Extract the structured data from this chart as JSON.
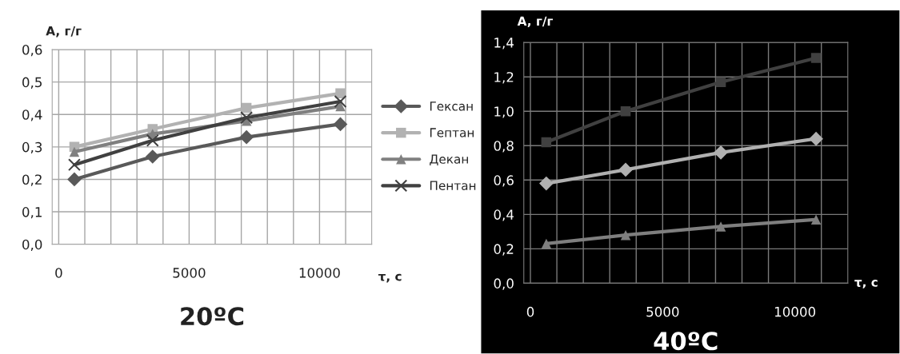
{
  "chart_data": [
    {
      "type": "line",
      "title": "20ºC",
      "xlabel": "τ, с",
      "ylabel": "A, г/г",
      "x": [
        600,
        3600,
        7200,
        10800
      ],
      "xlim": [
        -250,
        12000
      ],
      "xticks": [
        0,
        {
          "value": 1000,
          "label": null
        },
        {
          "value": 2000,
          "label": null
        },
        {
          "value": 3000,
          "label": null
        },
        {
          "value": 4000,
          "label": null
        },
        5000,
        {
          "value": 6000,
          "label": null
        },
        {
          "value": 7000,
          "label": null
        },
        {
          "value": 8000,
          "label": null
        },
        {
          "value": 9000,
          "label": null
        },
        10000,
        {
          "value": 11000,
          "label": null
        }
      ],
      "ylim": [
        0,
        0.6
      ],
      "yticks": [
        {
          "value": 0,
          "label": "0,0"
        },
        {
          "value": 0.1,
          "label": "0,1"
        },
        {
          "value": 0.2,
          "label": "0,2"
        },
        {
          "value": 0.3,
          "label": "0,3"
        },
        {
          "value": 0.4,
          "label": "0,4"
        },
        {
          "value": 0.5,
          "label": "0,5"
        },
        {
          "value": 0.6,
          "label": "0,6"
        }
      ],
      "grid": true,
      "legend": "right",
      "series": [
        {
          "name": "Гексан",
          "color": "#595959",
          "marker": "diamond",
          "values": [
            0.2,
            0.27,
            0.33,
            0.37
          ]
        },
        {
          "name": "Гептан",
          "color": "#b2b2b2",
          "marker": "square",
          "values": [
            0.3,
            0.355,
            0.42,
            0.465
          ]
        },
        {
          "name": "Декан",
          "color": "#808080",
          "marker": "triangle",
          "values": [
            0.285,
            0.34,
            0.38,
            0.425
          ]
        },
        {
          "name": "Пентан",
          "color": "#404040",
          "marker": "cross",
          "values": [
            0.245,
            0.32,
            0.39,
            0.44
          ]
        }
      ]
    },
    {
      "type": "line",
      "title": "40ºC",
      "xlabel": "τ, с",
      "ylabel": "A, г/г",
      "x": [
        600,
        3600,
        7200,
        10800
      ],
      "xlim": [
        -250,
        12000
      ],
      "xticks": [
        0,
        {
          "value": 1000,
          "label": null
        },
        {
          "value": 2000,
          "label": null
        },
        {
          "value": 3000,
          "label": null
        },
        {
          "value": 4000,
          "label": null
        },
        5000,
        {
          "value": 6000,
          "label": null
        },
        {
          "value": 7000,
          "label": null
        },
        {
          "value": 8000,
          "label": null
        },
        {
          "value": 9000,
          "label": null
        },
        10000,
        {
          "value": 11000,
          "label": null
        }
      ],
      "ylim": [
        0,
        1.4
      ],
      "yticks": [
        {
          "value": 0,
          "label": "0,0"
        },
        {
          "value": 0.2,
          "label": "0,2"
        },
        {
          "value": 0.4,
          "label": "0,4"
        },
        {
          "value": 0.6,
          "label": "0,6"
        },
        {
          "value": 0.8,
          "label": "0,8"
        },
        {
          "value": 1.0,
          "label": "1,0"
        },
        {
          "value": 1.2,
          "label": "1,2"
        },
        {
          "value": 1.4,
          "label": "1,4"
        }
      ],
      "grid": true,
      "series": [
        {
          "color": "#404040",
          "marker": "square",
          "values": [
            0.82,
            1.0,
            1.17,
            1.31
          ]
        },
        {
          "color": "#b0b0b0",
          "marker": "diamond",
          "values": [
            0.58,
            0.66,
            0.76,
            0.84
          ]
        },
        {
          "color": "#7f7f7f",
          "marker": "triangle",
          "values": [
            0.23,
            0.28,
            0.33,
            0.37
          ]
        }
      ]
    }
  ]
}
